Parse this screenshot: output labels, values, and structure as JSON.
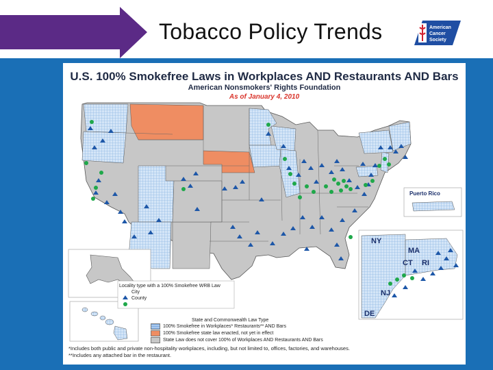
{
  "slide": {
    "title": "Tobacco Policy Trends",
    "logo_text": [
      "American",
      "Cancer",
      "Society"
    ]
  },
  "colors": {
    "banner_arrow": "#5b2a86",
    "panel_blue": "#1a6fb6",
    "smokefree_hatch": "#9cc2ea",
    "enacted_orange": "#ef8d62",
    "no_law_gray": "#c7c7c7",
    "city_marker": "#1d57a8",
    "county_marker": "#1fa84a",
    "logo_blue": "#1f4ea3",
    "logo_red": "#d0202f"
  },
  "map": {
    "title": "U.S. 100% Smokefree Laws in Workplaces AND Restaurants AND Bars",
    "subtitle": "American Nonsmokers' Rights Foundation",
    "date": "As of January 4, 2010",
    "insets": {
      "puerto_rico": "Puerto Rico",
      "ny": "NY",
      "ma": "MA",
      "ct": "CT",
      "ri": "RI",
      "nj": "NJ",
      "de": "DE"
    },
    "locality_legend": {
      "title": "Locality type with a 100% Smokefree WRB Law",
      "city": "City",
      "county": "County"
    },
    "status_legend": {
      "title": "State and Commonwealth Law Type",
      "smokefree": "100% Smokefree in Workplaces* Restaurants** AND Bars",
      "enacted": "100% Smokefree state law enacted, not yet in effect",
      "none": "State Law does not cover 100% of Workplaces AND Restaurants AND Bars"
    },
    "footnotes": [
      "*Includes both public and private non-hospitality workplaces, including, but not limited to, offices, factories, and warehouses.",
      "**Includes any attached bar in the restaurant."
    ]
  }
}
